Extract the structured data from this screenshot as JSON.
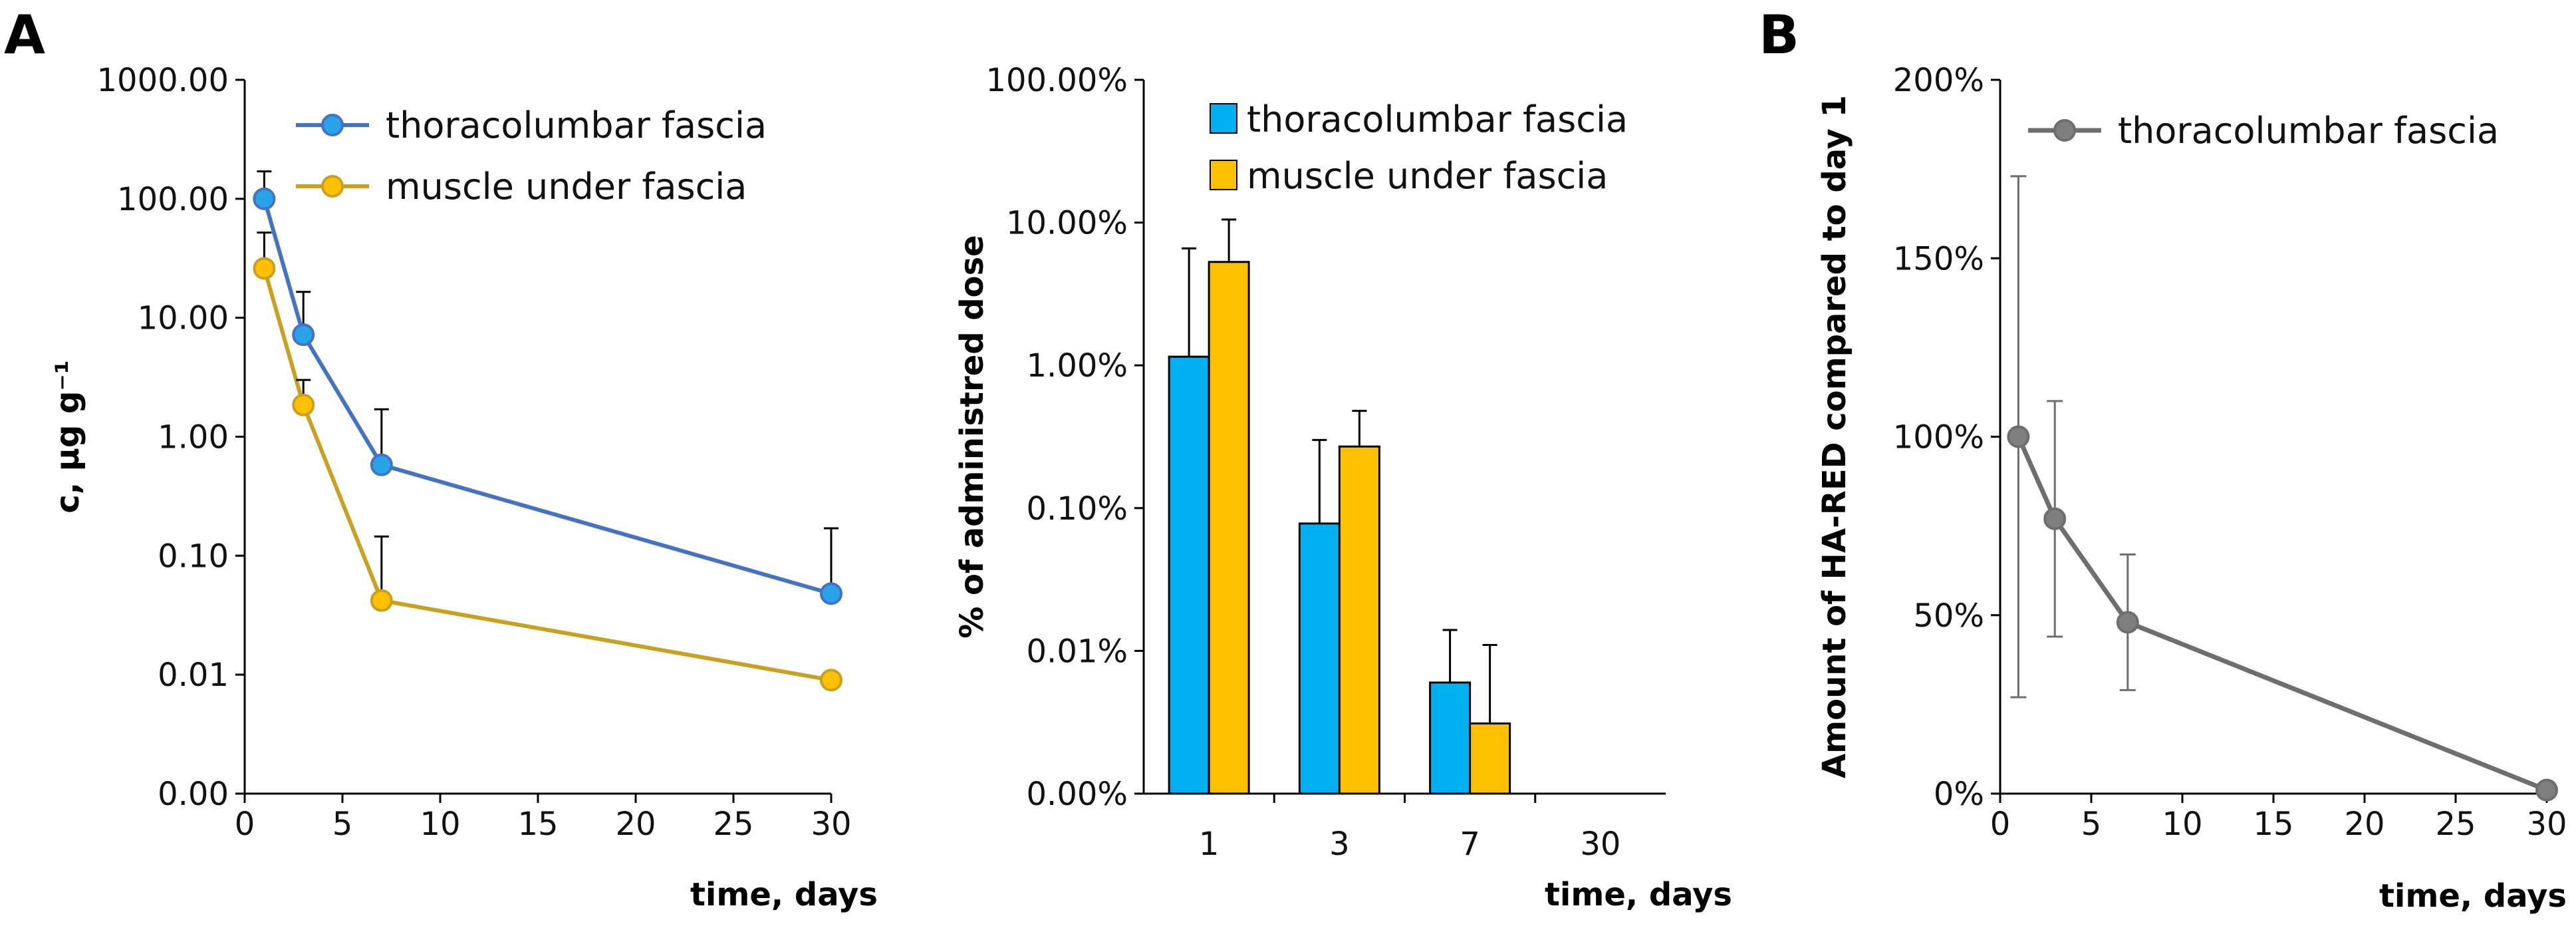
{
  "panel_labels": [
    "A",
    "B"
  ],
  "chart_data": [
    {
      "type": "line",
      "scale": "log",
      "title": "",
      "xlabel": "time, days",
      "ylabel": "c, µg g⁻¹",
      "xlim": [
        0,
        30
      ],
      "xticks": [
        0,
        5,
        10,
        15,
        20,
        25,
        30
      ],
      "ylim": [
        0.001,
        1000
      ],
      "yticks": [
        0.001,
        0.01,
        0.1,
        1,
        10,
        100,
        1000
      ],
      "ytick_labels": [
        "0.00",
        "0.01",
        "0.10",
        "1.00",
        "10.00",
        "100.00",
        "1000.00"
      ],
      "x": [
        1,
        3,
        7,
        30
      ],
      "legend_position": "top-left",
      "series": [
        {
          "name": "thoracolumbar fascia",
          "color": "#4472C4",
          "marker_color": "#29A3E8",
          "values": [
            100,
            7.2,
            0.58,
            0.048
          ],
          "error_upper": [
            170,
            16.5,
            1.7,
            0.17
          ]
        },
        {
          "name": "muscle under fascia",
          "color": "#C9A020",
          "marker_color": "#FFC000",
          "values": [
            26,
            1.85,
            0.042,
            0.009
          ],
          "error_upper": [
            52,
            3.0,
            0.145,
            null
          ]
        }
      ]
    },
    {
      "type": "bar",
      "scale": "log",
      "title": "",
      "xlabel": "time, days",
      "ylabel": "% of administred dose",
      "categories": [
        "1",
        "3",
        "7",
        "30"
      ],
      "ylim": [
        0.001,
        100
      ],
      "yticks": [
        0.001,
        0.01,
        0.1,
        1,
        10,
        100
      ],
      "ytick_labels": [
        "0.00%",
        "0.01%",
        "0.10%",
        "1.00%",
        "10.00%",
        "100.00%"
      ],
      "legend_position": "top-right",
      "series": [
        {
          "name": "thoracolumbar fascia",
          "color": "#00B0F0",
          "values": [
            1.15,
            0.078,
            0.006,
            null
          ],
          "error_upper": [
            6.6,
            0.3,
            0.014,
            null
          ]
        },
        {
          "name": "muscle under fascia",
          "color": "#FFC000",
          "values": [
            5.3,
            0.27,
            0.0031,
            null
          ],
          "error_upper": [
            10.5,
            0.48,
            0.011,
            null
          ]
        }
      ]
    },
    {
      "type": "line",
      "scale": "linear",
      "title": "",
      "xlabel": "time, days",
      "ylabel": "Amount of HA-RED compared to day 1",
      "xlim": [
        0,
        30
      ],
      "xticks": [
        0,
        5,
        10,
        15,
        20,
        25,
        30
      ],
      "ylim": [
        0,
        200
      ],
      "yticks": [
        0,
        50,
        100,
        150,
        200
      ],
      "ytick_labels": [
        "0%",
        "50%",
        "100%",
        "150%",
        "200%"
      ],
      "x": [
        1,
        3,
        7,
        30
      ],
      "legend_position": "top-right",
      "series": [
        {
          "name": "thoracolumbar fascia",
          "color": "#6E6E6E",
          "marker_color": "#7F7F7F",
          "values": [
            100,
            77,
            48,
            1
          ],
          "error_upper": [
            173,
            110,
            67,
            null
          ],
          "error_lower": [
            27,
            44,
            29,
            null
          ]
        }
      ]
    }
  ]
}
